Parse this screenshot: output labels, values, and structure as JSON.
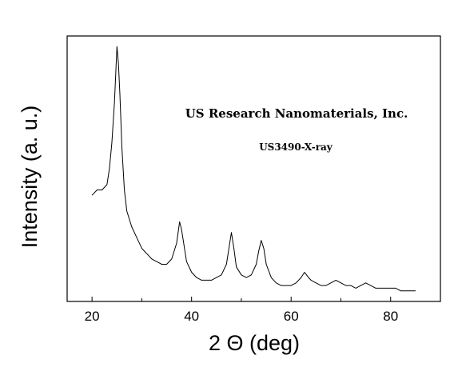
{
  "chart_data": {
    "type": "line",
    "title": "",
    "xlabel": "2 Θ (deg)",
    "ylabel": "Intensity (a. u.)",
    "xlim": [
      15,
      90
    ],
    "ylim": [
      0,
      1
    ],
    "x_ticks": [
      20,
      40,
      60,
      80
    ],
    "x_minor_ticks": [
      30,
      50,
      70
    ],
    "y_ticks": [],
    "grid": false,
    "legend": "none",
    "series_color": "#000000",
    "annotations": [
      {
        "text": "US Research Nanomaterials, Inc.",
        "role": "title-annotation"
      },
      {
        "text": "US3490-X-ray",
        "role": "sample-annotation"
      }
    ],
    "series": [
      {
        "x": [
          20,
          21,
          22,
          23,
          23.5,
          24,
          24.5,
          25,
          25.3,
          25.6,
          26,
          26.5,
          27,
          28,
          29,
          30,
          31,
          32,
          33,
          34,
          35,
          36,
          37,
          37.6,
          38,
          38.5,
          39,
          40,
          41,
          42,
          43,
          44,
          45,
          46,
          47,
          47.5,
          48,
          48.5,
          49,
          50,
          51,
          52,
          53,
          53.5,
          54,
          54.5,
          55,
          56,
          57,
          58,
          59,
          60,
          61,
          62,
          62.7,
          63.5,
          64,
          65,
          66,
          67,
          68,
          69,
          70,
          71,
          72,
          73,
          74,
          75,
          76,
          77,
          78,
          79,
          80,
          81,
          82,
          83,
          84,
          85
        ],
        "y": [
          0.4,
          0.42,
          0.42,
          0.44,
          0.5,
          0.6,
          0.75,
          0.96,
          0.9,
          0.78,
          0.58,
          0.42,
          0.34,
          0.28,
          0.24,
          0.2,
          0.18,
          0.16,
          0.15,
          0.14,
          0.14,
          0.16,
          0.22,
          0.3,
          0.27,
          0.21,
          0.15,
          0.11,
          0.09,
          0.08,
          0.08,
          0.08,
          0.09,
          0.1,
          0.14,
          0.2,
          0.26,
          0.2,
          0.13,
          0.1,
          0.09,
          0.1,
          0.14,
          0.19,
          0.23,
          0.2,
          0.14,
          0.09,
          0.07,
          0.06,
          0.06,
          0.06,
          0.07,
          0.09,
          0.11,
          0.09,
          0.08,
          0.07,
          0.06,
          0.06,
          0.07,
          0.08,
          0.07,
          0.06,
          0.06,
          0.05,
          0.06,
          0.07,
          0.06,
          0.05,
          0.05,
          0.05,
          0.05,
          0.05,
          0.04,
          0.04,
          0.04,
          0.04
        ]
      }
    ]
  }
}
